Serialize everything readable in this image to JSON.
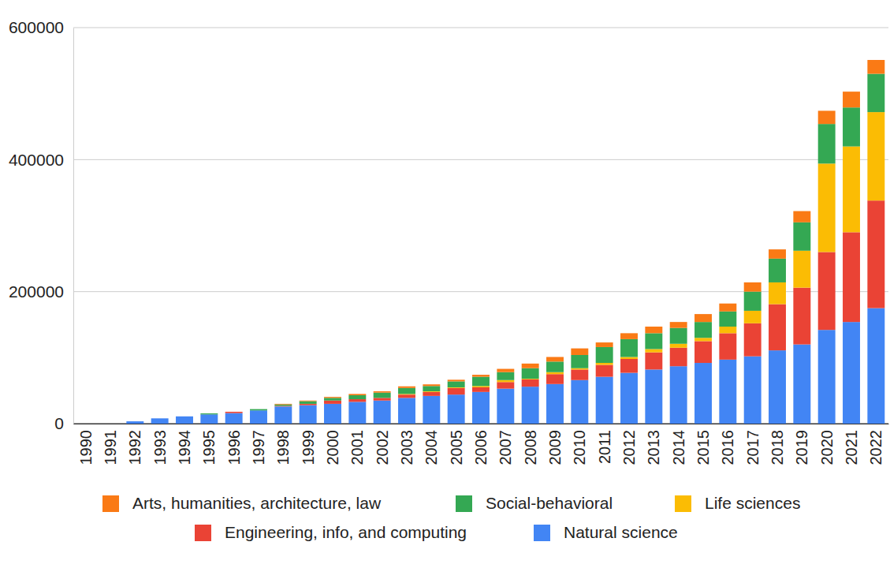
{
  "chart_data": {
    "type": "bar",
    "stacked": true,
    "grid": true,
    "legend": "bottom",
    "categories": [
      "1990",
      "1991",
      "1992",
      "1993",
      "1994",
      "1995",
      "1996",
      "1997",
      "1998",
      "1999",
      "2000",
      "2001",
      "2002",
      "2003",
      "2004",
      "2005",
      "2006",
      "2007",
      "2008",
      "2009",
      "2010",
      "2011",
      "2012",
      "2013",
      "2014",
      "2015",
      "2016",
      "2017",
      "2018",
      "2019",
      "2020",
      "2021",
      "2022"
    ],
    "series": [
      {
        "name": "Arts, humanities, architecture, law",
        "color": "#fa7a15",
        "values": [
          0,
          0,
          0,
          0,
          0,
          0,
          0,
          0,
          1000,
          1000,
          1500,
          2000,
          2000,
          2500,
          2500,
          2500,
          3000,
          5000,
          7000,
          7000,
          10000,
          7000,
          9000,
          10000,
          9000,
          12000,
          12000,
          14000,
          14000,
          17000,
          20000,
          24000,
          21000
        ]
      },
      {
        "name": "Social-behavioral",
        "color": "#34a853",
        "values": [
          0,
          0,
          0,
          0,
          0,
          1500,
          0,
          2000,
          2000,
          4000,
          4000,
          6000,
          8000,
          9000,
          8000,
          9000,
          14000,
          12000,
          16000,
          16000,
          20000,
          24000,
          27000,
          24000,
          24000,
          24000,
          23000,
          29000,
          36000,
          43000,
          60000,
          59000,
          58000
        ]
      },
      {
        "name": "Life sciences",
        "color": "#fbbc04",
        "values": [
          0,
          0,
          0,
          0,
          0,
          0,
          0,
          0,
          0,
          0,
          0,
          0,
          0,
          1000,
          1000,
          1000,
          2000,
          3000,
          1000,
          3000,
          2000,
          3000,
          3000,
          5000,
          6000,
          5000,
          10000,
          19000,
          33000,
          56000,
          134000,
          130000,
          134000
        ]
      },
      {
        "name": "Engineering, info, and computing",
        "color": "#ea4335",
        "values": [
          0,
          0,
          0,
          0,
          0,
          0,
          2000,
          0,
          1000,
          2000,
          5000,
          4000,
          4000,
          5000,
          6000,
          10000,
          7000,
          10000,
          11000,
          15000,
          16000,
          18000,
          21000,
          26000,
          28000,
          33000,
          40000,
          50000,
          70000,
          86000,
          118000,
          136000,
          163000
        ]
      },
      {
        "name": "Natural science",
        "color": "#4285f4",
        "values": [
          0,
          0,
          3500,
          8000,
          11000,
          14000,
          16000,
          20000,
          26000,
          28000,
          30000,
          33000,
          35000,
          39000,
          42000,
          44000,
          48000,
          53000,
          56000,
          60000,
          66000,
          71000,
          77000,
          82000,
          87000,
          92000,
          97000,
          102000,
          111000,
          120000,
          142000,
          154000,
          175000
        ]
      }
    ],
    "ylim": [
      0,
      600000
    ],
    "yticks": [
      0,
      200000,
      400000,
      600000
    ]
  }
}
